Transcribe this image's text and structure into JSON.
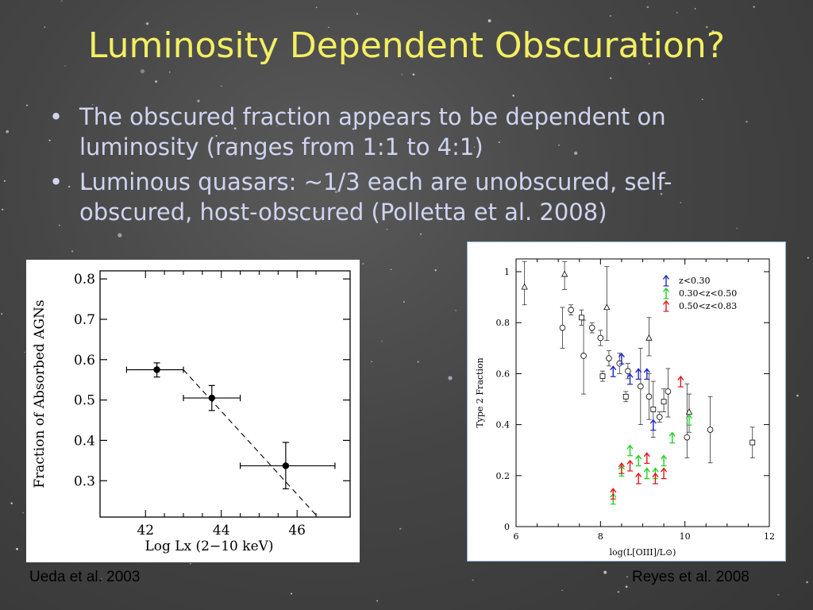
{
  "slide": {
    "title": "Luminosity Dependent Obscuration?",
    "bullets": [
      "The obscured fraction appears to be dependent on luminosity (ranges from 1:1 to 4:1)",
      "Luminous quasars: ~1/3 each are unobscured, self-obscured, host-obscured (Polletta et al. 2008)"
    ],
    "bullet_glyph": "•",
    "caption_left": "Ueda et al. 2003",
    "caption_right": "Reyes et al. 2008",
    "colors": {
      "title": "#f3ef62",
      "text": "#cfd4f0",
      "blue": "#1a25c8",
      "green": "#22d022",
      "red": "#e01515"
    }
  },
  "chart_data": [
    {
      "type": "scatter",
      "title": "",
      "xlabel": "Log Lx (2−10 keV)",
      "ylabel": "Fraction of Absorbed AGNs",
      "xlim": [
        40.8,
        47.4
      ],
      "ylim": [
        0.21,
        0.82
      ],
      "xticks": [
        42,
        44,
        46
      ],
      "yticks": [
        0.3,
        0.4,
        0.5,
        0.6,
        0.7,
        0.8
      ],
      "yticklabels": [
        "0.3",
        "0.4",
        "0.5",
        "0.6",
        "0.7",
        "0.8"
      ],
      "points": [
        {
          "x": 42.3,
          "y": 0.575,
          "xlo": 41.5,
          "xhi": 43.0,
          "ylo": 0.557,
          "yhi": 0.592
        },
        {
          "x": 43.75,
          "y": 0.505,
          "xlo": 43.0,
          "xhi": 44.5,
          "ylo": 0.474,
          "yhi": 0.536
        },
        {
          "x": 45.7,
          "y": 0.337,
          "xlo": 44.5,
          "xhi": 47.0,
          "ylo": 0.28,
          "yhi": 0.395
        }
      ],
      "fit_line": {
        "x": [
          43.0,
          46.55
        ],
        "y": [
          0.575,
          0.21
        ],
        "style": "dashed"
      }
    },
    {
      "type": "scatter",
      "title": "",
      "xlabel": "log(L[OIII]/L⊙)",
      "ylabel": "Type 2 Fraction",
      "xlim": [
        6,
        12
      ],
      "ylim": [
        0,
        1.05
      ],
      "xticks": [
        6,
        8,
        10,
        12
      ],
      "yticks": [
        0,
        0.2,
        0.4,
        0.6,
        0.8,
        1
      ],
      "yticklabels": [
        "0",
        "0.2",
        "0.4",
        "0.6",
        "0.8",
        "1"
      ],
      "legend": {
        "position": "top-right",
        "entries": [
          {
            "label": "z<0.30",
            "color": "#1a25c8"
          },
          {
            "label": "0.30<z<0.50",
            "color": "#22d022"
          },
          {
            "label": "0.50<z<0.83",
            "color": "#e01515"
          }
        ]
      },
      "black_points": [
        {
          "m": "triangle",
          "x": 6.2,
          "y": 0.94,
          "ylo": 0.87,
          "yhi": 1.04
        },
        {
          "m": "triangle",
          "x": 7.15,
          "y": 0.99,
          "ylo": 0.93,
          "yhi": 1.04
        },
        {
          "m": "triangle",
          "x": 8.15,
          "y": 0.86,
          "ylo": 0.73,
          "yhi": 1.02
        },
        {
          "m": "triangle",
          "x": 9.15,
          "y": 0.74,
          "ylo": 0.67,
          "yhi": 0.82
        },
        {
          "m": "triangle",
          "x": 10.1,
          "y": 0.45,
          "ylo": 0.37,
          "yhi": 0.52
        },
        {
          "m": "circle",
          "x": 7.1,
          "y": 0.78,
          "ylo": 0.7,
          "yhi": 0.86
        },
        {
          "m": "circle",
          "x": 7.3,
          "y": 0.85,
          "ylo": 0.83,
          "yhi": 0.87
        },
        {
          "m": "circle",
          "x": 7.6,
          "y": 0.67,
          "ylo": 0.52,
          "yhi": 0.81
        },
        {
          "m": "circle",
          "x": 7.8,
          "y": 0.78,
          "ylo": 0.76,
          "yhi": 0.8
        },
        {
          "m": "circle",
          "x": 8.0,
          "y": 0.74,
          "ylo": 0.71,
          "yhi": 0.77
        },
        {
          "m": "circle",
          "x": 8.2,
          "y": 0.66,
          "ylo": 0.63,
          "yhi": 0.69
        },
        {
          "m": "circle",
          "x": 8.45,
          "y": 0.64,
          "ylo": 0.6,
          "yhi": 0.68
        },
        {
          "m": "circle",
          "x": 8.65,
          "y": 0.61,
          "ylo": 0.58,
          "yhi": 0.64
        },
        {
          "m": "circle",
          "x": 8.95,
          "y": 0.55,
          "ylo": 0.4,
          "yhi": 0.7
        },
        {
          "m": "circle",
          "x": 9.15,
          "y": 0.51,
          "ylo": 0.42,
          "yhi": 0.6
        },
        {
          "m": "circle",
          "x": 9.4,
          "y": 0.43,
          "ylo": 0.41,
          "yhi": 0.45
        },
        {
          "m": "circle",
          "x": 9.6,
          "y": 0.53,
          "ylo": 0.43,
          "yhi": 0.62
        },
        {
          "m": "circle",
          "x": 10.05,
          "y": 0.35,
          "ylo": 0.27,
          "yhi": 0.56
        },
        {
          "m": "circle",
          "x": 10.6,
          "y": 0.38,
          "ylo": 0.25,
          "yhi": 0.51
        },
        {
          "m": "square",
          "x": 7.55,
          "y": 0.82,
          "ylo": 0.79,
          "yhi": 0.85
        },
        {
          "m": "square",
          "x": 8.05,
          "y": 0.59,
          "ylo": 0.57,
          "yhi": 0.61
        },
        {
          "m": "square",
          "x": 8.6,
          "y": 0.51,
          "ylo": 0.49,
          "yhi": 0.53
        },
        {
          "m": "square",
          "x": 9.25,
          "y": 0.46,
          "ylo": 0.35,
          "yhi": 0.57
        },
        {
          "m": "square",
          "x": 9.5,
          "y": 0.49,
          "ylo": 0.45,
          "yhi": 0.54
        },
        {
          "m": "square",
          "x": 11.6,
          "y": 0.33,
          "ylo": 0.27,
          "yhi": 0.39
        }
      ],
      "arrows": [
        {
          "s": 0,
          "x": 8.3,
          "y": 0.61
        },
        {
          "s": 0,
          "x": 8.5,
          "y": 0.66
        },
        {
          "s": 0,
          "x": 8.7,
          "y": 0.58
        },
        {
          "s": 0,
          "x": 8.9,
          "y": 0.6
        },
        {
          "s": 0,
          "x": 9.1,
          "y": 0.6
        },
        {
          "s": 0,
          "x": 9.25,
          "y": 0.4
        },
        {
          "s": 1,
          "x": 8.3,
          "y": 0.11
        },
        {
          "s": 1,
          "x": 8.5,
          "y": 0.22
        },
        {
          "s": 1,
          "x": 8.7,
          "y": 0.3
        },
        {
          "s": 1,
          "x": 8.9,
          "y": 0.26
        },
        {
          "s": 1,
          "x": 9.1,
          "y": 0.21
        },
        {
          "s": 1,
          "x": 9.3,
          "y": 0.21
        },
        {
          "s": 1,
          "x": 9.5,
          "y": 0.26
        },
        {
          "s": 1,
          "x": 9.7,
          "y": 0.35
        },
        {
          "s": 1,
          "x": 10.1,
          "y": 0.42
        },
        {
          "s": 2,
          "x": 8.3,
          "y": 0.13
        },
        {
          "s": 2,
          "x": 8.5,
          "y": 0.23
        },
        {
          "s": 2,
          "x": 8.7,
          "y": 0.24
        },
        {
          "s": 2,
          "x": 8.9,
          "y": 0.19
        },
        {
          "s": 2,
          "x": 9.1,
          "y": 0.27
        },
        {
          "s": 2,
          "x": 9.3,
          "y": 0.19
        },
        {
          "s": 2,
          "x": 9.5,
          "y": 0.21
        },
        {
          "s": 2,
          "x": 9.9,
          "y": 0.57
        }
      ]
    }
  ]
}
